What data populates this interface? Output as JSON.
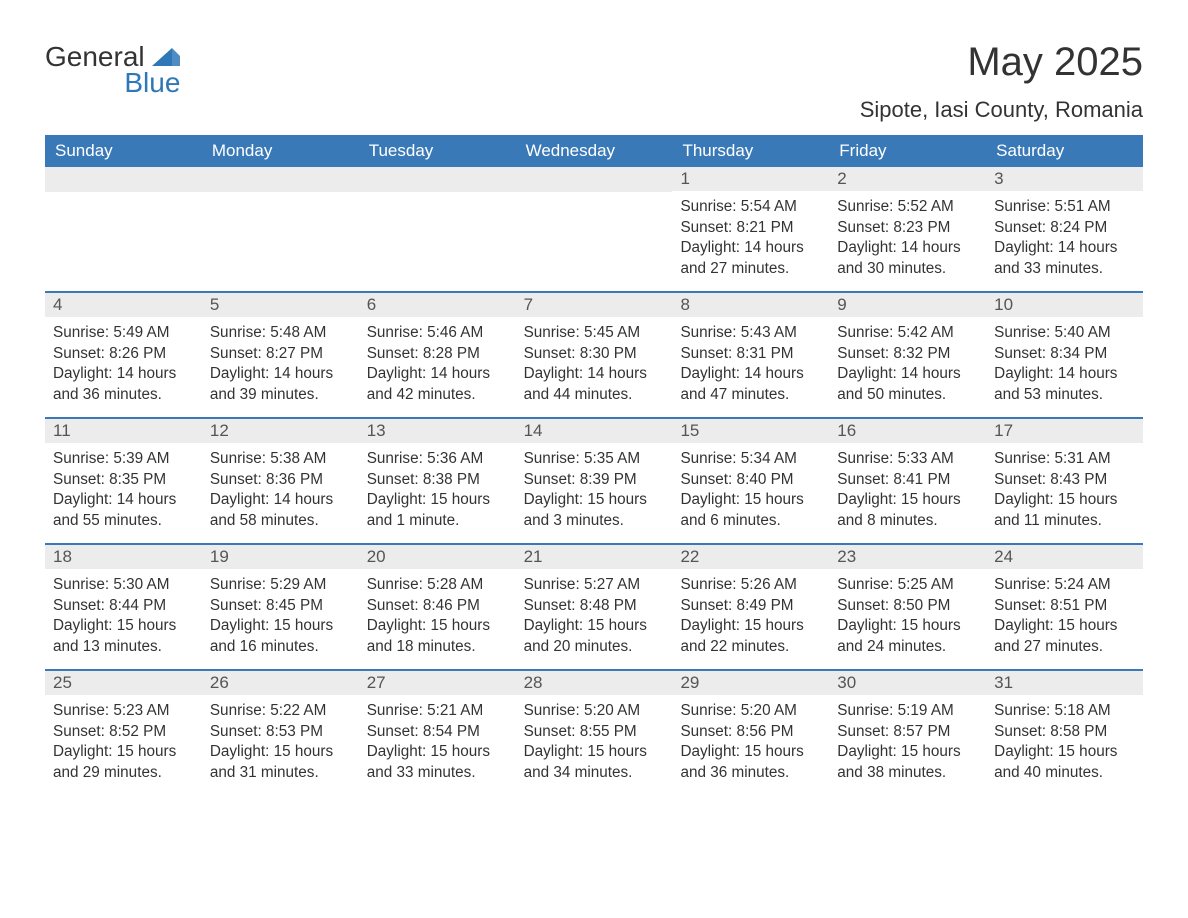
{
  "logo": {
    "word1": "General",
    "word2": "Blue"
  },
  "title": "May 2025",
  "location": "Sipote, Iasi County, Romania",
  "colors": {
    "header_bg": "#3a79b7",
    "header_text": "#ffffff",
    "daynum_bg": "#ececec",
    "daynum_text": "#555555",
    "body_text": "#333333",
    "logo_blue": "#2f78b7",
    "week_border": "#3a79b7",
    "background": "#ffffff"
  },
  "days_of_week": [
    "Sunday",
    "Monday",
    "Tuesday",
    "Wednesday",
    "Thursday",
    "Friday",
    "Saturday"
  ],
  "weeks": [
    [
      {
        "n": "",
        "sunrise": "",
        "sunset": "",
        "daylight": ""
      },
      {
        "n": "",
        "sunrise": "",
        "sunset": "",
        "daylight": ""
      },
      {
        "n": "",
        "sunrise": "",
        "sunset": "",
        "daylight": ""
      },
      {
        "n": "",
        "sunrise": "",
        "sunset": "",
        "daylight": ""
      },
      {
        "n": "1",
        "sunrise": "Sunrise: 5:54 AM",
        "sunset": "Sunset: 8:21 PM",
        "daylight": "Daylight: 14 hours and 27 minutes."
      },
      {
        "n": "2",
        "sunrise": "Sunrise: 5:52 AM",
        "sunset": "Sunset: 8:23 PM",
        "daylight": "Daylight: 14 hours and 30 minutes."
      },
      {
        "n": "3",
        "sunrise": "Sunrise: 5:51 AM",
        "sunset": "Sunset: 8:24 PM",
        "daylight": "Daylight: 14 hours and 33 minutes."
      }
    ],
    [
      {
        "n": "4",
        "sunrise": "Sunrise: 5:49 AM",
        "sunset": "Sunset: 8:26 PM",
        "daylight": "Daylight: 14 hours and 36 minutes."
      },
      {
        "n": "5",
        "sunrise": "Sunrise: 5:48 AM",
        "sunset": "Sunset: 8:27 PM",
        "daylight": "Daylight: 14 hours and 39 minutes."
      },
      {
        "n": "6",
        "sunrise": "Sunrise: 5:46 AM",
        "sunset": "Sunset: 8:28 PM",
        "daylight": "Daylight: 14 hours and 42 minutes."
      },
      {
        "n": "7",
        "sunrise": "Sunrise: 5:45 AM",
        "sunset": "Sunset: 8:30 PM",
        "daylight": "Daylight: 14 hours and 44 minutes."
      },
      {
        "n": "8",
        "sunrise": "Sunrise: 5:43 AM",
        "sunset": "Sunset: 8:31 PM",
        "daylight": "Daylight: 14 hours and 47 minutes."
      },
      {
        "n": "9",
        "sunrise": "Sunrise: 5:42 AM",
        "sunset": "Sunset: 8:32 PM",
        "daylight": "Daylight: 14 hours and 50 minutes."
      },
      {
        "n": "10",
        "sunrise": "Sunrise: 5:40 AM",
        "sunset": "Sunset: 8:34 PM",
        "daylight": "Daylight: 14 hours and 53 minutes."
      }
    ],
    [
      {
        "n": "11",
        "sunrise": "Sunrise: 5:39 AM",
        "sunset": "Sunset: 8:35 PM",
        "daylight": "Daylight: 14 hours and 55 minutes."
      },
      {
        "n": "12",
        "sunrise": "Sunrise: 5:38 AM",
        "sunset": "Sunset: 8:36 PM",
        "daylight": "Daylight: 14 hours and 58 minutes."
      },
      {
        "n": "13",
        "sunrise": "Sunrise: 5:36 AM",
        "sunset": "Sunset: 8:38 PM",
        "daylight": "Daylight: 15 hours and 1 minute."
      },
      {
        "n": "14",
        "sunrise": "Sunrise: 5:35 AM",
        "sunset": "Sunset: 8:39 PM",
        "daylight": "Daylight: 15 hours and 3 minutes."
      },
      {
        "n": "15",
        "sunrise": "Sunrise: 5:34 AM",
        "sunset": "Sunset: 8:40 PM",
        "daylight": "Daylight: 15 hours and 6 minutes."
      },
      {
        "n": "16",
        "sunrise": "Sunrise: 5:33 AM",
        "sunset": "Sunset: 8:41 PM",
        "daylight": "Daylight: 15 hours and 8 minutes."
      },
      {
        "n": "17",
        "sunrise": "Sunrise: 5:31 AM",
        "sunset": "Sunset: 8:43 PM",
        "daylight": "Daylight: 15 hours and 11 minutes."
      }
    ],
    [
      {
        "n": "18",
        "sunrise": "Sunrise: 5:30 AM",
        "sunset": "Sunset: 8:44 PM",
        "daylight": "Daylight: 15 hours and 13 minutes."
      },
      {
        "n": "19",
        "sunrise": "Sunrise: 5:29 AM",
        "sunset": "Sunset: 8:45 PM",
        "daylight": "Daylight: 15 hours and 16 minutes."
      },
      {
        "n": "20",
        "sunrise": "Sunrise: 5:28 AM",
        "sunset": "Sunset: 8:46 PM",
        "daylight": "Daylight: 15 hours and 18 minutes."
      },
      {
        "n": "21",
        "sunrise": "Sunrise: 5:27 AM",
        "sunset": "Sunset: 8:48 PM",
        "daylight": "Daylight: 15 hours and 20 minutes."
      },
      {
        "n": "22",
        "sunrise": "Sunrise: 5:26 AM",
        "sunset": "Sunset: 8:49 PM",
        "daylight": "Daylight: 15 hours and 22 minutes."
      },
      {
        "n": "23",
        "sunrise": "Sunrise: 5:25 AM",
        "sunset": "Sunset: 8:50 PM",
        "daylight": "Daylight: 15 hours and 24 minutes."
      },
      {
        "n": "24",
        "sunrise": "Sunrise: 5:24 AM",
        "sunset": "Sunset: 8:51 PM",
        "daylight": "Daylight: 15 hours and 27 minutes."
      }
    ],
    [
      {
        "n": "25",
        "sunrise": "Sunrise: 5:23 AM",
        "sunset": "Sunset: 8:52 PM",
        "daylight": "Daylight: 15 hours and 29 minutes."
      },
      {
        "n": "26",
        "sunrise": "Sunrise: 5:22 AM",
        "sunset": "Sunset: 8:53 PM",
        "daylight": "Daylight: 15 hours and 31 minutes."
      },
      {
        "n": "27",
        "sunrise": "Sunrise: 5:21 AM",
        "sunset": "Sunset: 8:54 PM",
        "daylight": "Daylight: 15 hours and 33 minutes."
      },
      {
        "n": "28",
        "sunrise": "Sunrise: 5:20 AM",
        "sunset": "Sunset: 8:55 PM",
        "daylight": "Daylight: 15 hours and 34 minutes."
      },
      {
        "n": "29",
        "sunrise": "Sunrise: 5:20 AM",
        "sunset": "Sunset: 8:56 PM",
        "daylight": "Daylight: 15 hours and 36 minutes."
      },
      {
        "n": "30",
        "sunrise": "Sunrise: 5:19 AM",
        "sunset": "Sunset: 8:57 PM",
        "daylight": "Daylight: 15 hours and 38 minutes."
      },
      {
        "n": "31",
        "sunrise": "Sunrise: 5:18 AM",
        "sunset": "Sunset: 8:58 PM",
        "daylight": "Daylight: 15 hours and 40 minutes."
      }
    ]
  ]
}
